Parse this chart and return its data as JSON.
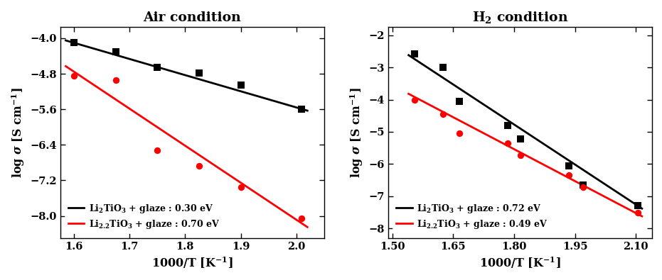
{
  "air": {
    "title": "Air condition",
    "black_x": [
      1.6,
      1.675,
      1.75,
      1.825,
      1.9,
      2.01
    ],
    "black_y": [
      -4.1,
      -4.3,
      -4.65,
      -4.78,
      -5.05,
      -5.6
    ],
    "red_x": [
      1.6,
      1.675,
      1.75,
      1.825,
      1.9,
      2.01
    ],
    "red_y": [
      -4.85,
      -4.95,
      -6.52,
      -6.88,
      -7.35,
      -8.05
    ],
    "black_fit_x": [
      1.585,
      2.02
    ],
    "black_fit_y": [
      -4.05,
      -5.63
    ],
    "red_fit_x": [
      1.585,
      2.02
    ],
    "red_fit_y": [
      -4.63,
      -8.25
    ],
    "xlim": [
      1.575,
      2.05
    ],
    "ylim": [
      -8.5,
      -3.75
    ],
    "yticks": [
      -8.0,
      -7.2,
      -6.4,
      -5.6,
      -4.8,
      -4.0
    ],
    "xticks": [
      1.6,
      1.7,
      1.8,
      1.9,
      2.0
    ],
    "black_label": "Li$_2$TiO$_3$ + glaze : 0.30 eV",
    "red_label": "Li$_{2.2}$TiO$_3$ + glaze : 0.70 eV"
  },
  "h2": {
    "title": "H$_2$ condition",
    "black_x": [
      1.555,
      1.625,
      1.665,
      1.785,
      1.815,
      1.935,
      1.97,
      2.105
    ],
    "black_y": [
      -2.58,
      -3.0,
      -4.05,
      -4.8,
      -5.22,
      -6.05,
      -6.65,
      -7.28
    ],
    "red_x": [
      1.555,
      1.625,
      1.665,
      1.785,
      1.815,
      1.935,
      1.97,
      2.105
    ],
    "red_y": [
      -4.0,
      -4.45,
      -5.05,
      -5.35,
      -5.72,
      -6.35,
      -6.72,
      -7.5
    ],
    "black_fit_x": [
      1.54,
      2.115
    ],
    "black_fit_y": [
      -2.62,
      -7.38
    ],
    "red_fit_x": [
      1.54,
      2.115
    ],
    "red_fit_y": [
      -3.82,
      -7.62
    ],
    "xlim": [
      1.49,
      2.14
    ],
    "ylim": [
      -8.3,
      -1.75
    ],
    "yticks": [
      -8,
      -7,
      -6,
      -5,
      -4,
      -3,
      -2
    ],
    "xticks": [
      1.5,
      1.65,
      1.8,
      1.95,
      2.1
    ],
    "black_label": "Li$_2$TiO$_3$ + glaze : 0.72 eV",
    "red_label": "Li$_{2.2}$TiO$_3$ + glaze : 0.49 eV"
  },
  "xlabel": "1000/T [K$^{-1}$]",
  "ylabel": "log $\\sigma$ [S cm$^{-1}$]"
}
